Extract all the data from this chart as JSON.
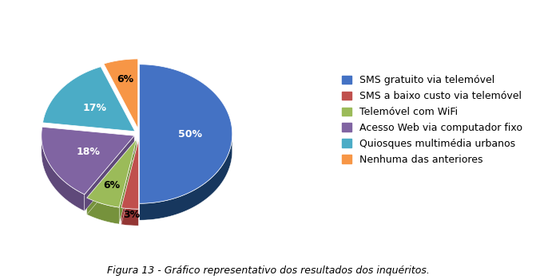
{
  "labels": [
    "SMS gratuito via telemóvel",
    "SMS a baixo custo via telemóvel",
    "Telemóvel com WiFi",
    "Acesso Web via computador fixo",
    "Quiosques multimédia urbanos",
    "Nenhuma das anteriores"
  ],
  "values": [
    50,
    3,
    6,
    18,
    17,
    6
  ],
  "colors": [
    "#4472C4",
    "#C0504D",
    "#9BBB59",
    "#8064A2",
    "#4BACC6",
    "#F79646"
  ],
  "dark_colors": [
    "#17375E",
    "#943634",
    "#76923C",
    "#5F497A",
    "#215868",
    "#974806"
  ],
  "caption": "Figura 13 - Gráfico representativo dos resultados dos inquéritos.",
  "pct_labels": [
    "50%",
    "3%",
    "6%",
    "18%",
    "17%",
    "6%"
  ],
  "startangle": 90,
  "label_fontsize": 9,
  "caption_fontsize": 9,
  "legend_fontsize": 9
}
